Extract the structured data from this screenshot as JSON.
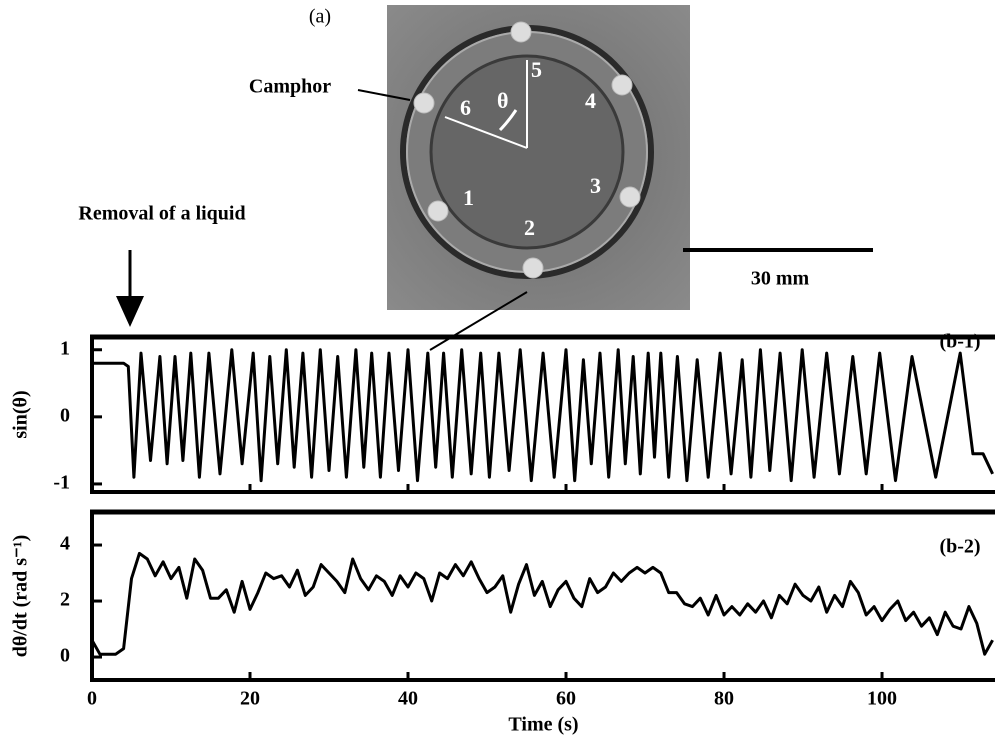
{
  "panel_a": {
    "label": "(a)",
    "camphor_label": "Camphor",
    "theta": "θ",
    "numbers": [
      "1",
      "2",
      "3",
      "4",
      "5",
      "6"
    ],
    "scale_bar": "30 mm"
  },
  "annotation": "Removal of a liquid",
  "chart_data": [
    {
      "type": "line",
      "panel_label": "(b-1)",
      "y_label": "sin(θ)",
      "color": "#000000",
      "xlim": [
        0,
        114.3
      ],
      "ylim": [
        -1.12,
        1.19
      ],
      "yticks": [
        -1,
        0,
        1
      ],
      "x": [
        0,
        4,
        4.6,
        5.3,
        6.2,
        7.4,
        8.6,
        9.5,
        10.5,
        11.5,
        12.5,
        13.6,
        14.8,
        16.2,
        17.7,
        19.0,
        20.4,
        21.4,
        22.5,
        23.5,
        24.6,
        25.6,
        26.7,
        27.8,
        28.9,
        30.0,
        31.1,
        32.2,
        33.4,
        34.4,
        35.4,
        36.5,
        37.6,
        38.8,
        40.0,
        41.2,
        42.5,
        43.5,
        44.5,
        45.6,
        46.8,
        48.0,
        49.2,
        50.3,
        51.5,
        52.8,
        54.2,
        55.6,
        57.1,
        58.5,
        60.0,
        61.1,
        62.2,
        63.2,
        64.3,
        65.4,
        66.6,
        67.5,
        68.5,
        69.4,
        70.4,
        71.2,
        72.0,
        73.0,
        74.1,
        75.3,
        76.6,
        78.0,
        79.5,
        80.9,
        82.3,
        83.4,
        84.6,
        85.8,
        87.1,
        88.5,
        89.9,
        91.4,
        93.0,
        94.6,
        96.3,
        98.0,
        99.7,
        101.7,
        103.8,
        106.8,
        109.9,
        111.5,
        112.8,
        114.0
      ],
      "values": [
        0.8,
        0.8,
        0.75,
        -0.9,
        0.95,
        -0.65,
        0.9,
        -0.7,
        0.9,
        -0.65,
        0.95,
        -0.9,
        0.95,
        -0.85,
        1.0,
        -0.7,
        0.95,
        -0.95,
        0.9,
        -0.7,
        1.0,
        -0.75,
        0.95,
        -0.9,
        1.0,
        -0.8,
        0.9,
        -0.9,
        1.0,
        -0.75,
        0.95,
        -0.9,
        0.95,
        -0.8,
        1.0,
        -0.95,
        0.95,
        -0.75,
        0.95,
        -0.9,
        1.0,
        -0.85,
        0.95,
        -0.9,
        0.95,
        -0.8,
        1.0,
        -0.95,
        0.95,
        -0.9,
        1.0,
        -0.95,
        0.85,
        -0.7,
        0.95,
        -0.9,
        1.0,
        -0.7,
        0.9,
        -0.85,
        0.95,
        -0.6,
        0.95,
        -0.9,
        0.9,
        -0.95,
        0.85,
        -0.9,
        0.95,
        -0.85,
        0.85,
        -0.9,
        1.0,
        -0.8,
        0.95,
        -0.95,
        1.0,
        -0.9,
        0.95,
        -0.85,
        0.9,
        -0.85,
        0.95,
        -0.95,
        0.9,
        -0.9,
        0.95,
        -0.55,
        -0.55,
        -0.85
      ]
    },
    {
      "type": "line",
      "panel_label": "(b-2)",
      "y_label": "dθ/dt (rad s⁻¹)",
      "x_label": "Time (s)",
      "color": "#000000",
      "xlim": [
        0,
        114.3
      ],
      "ylim": [
        -0.82,
        5.18
      ],
      "yticks": [
        0,
        2,
        4
      ],
      "xticks": [
        0,
        20,
        40,
        60,
        80,
        100
      ],
      "x": [
        0,
        1,
        2,
        3,
        4,
        5,
        6,
        7,
        8,
        9,
        10,
        11,
        12,
        13,
        14,
        15,
        16,
        17,
        18,
        19,
        20,
        21,
        22,
        23,
        24,
        25,
        26,
        27,
        28,
        29,
        30,
        31,
        32,
        33,
        34,
        35,
        36,
        37,
        38,
        39,
        40,
        41,
        42,
        43,
        44,
        45,
        46,
        47,
        48,
        49,
        50,
        51,
        52,
        53,
        54,
        55,
        56,
        57,
        58,
        59,
        60,
        61,
        62,
        63,
        64,
        65,
        66,
        67,
        68,
        69,
        70,
        71,
        72,
        73,
        74,
        75,
        76,
        77,
        78,
        79,
        80,
        81,
        82,
        83,
        84,
        85,
        86,
        87,
        88,
        89,
        90,
        91,
        92,
        93,
        94,
        95,
        96,
        97,
        98,
        99,
        100,
        101,
        102,
        103,
        104,
        105,
        106,
        107,
        108,
        109,
        110,
        111,
        112,
        113,
        114
      ],
      "values": [
        0.6,
        0.1,
        0.1,
        0.1,
        0.3,
        2.8,
        3.7,
        3.5,
        2.9,
        3.4,
        2.8,
        3.2,
        2.1,
        3.5,
        3.1,
        2.1,
        2.1,
        2.4,
        1.6,
        2.7,
        1.7,
        2.3,
        3.0,
        2.8,
        2.9,
        2.5,
        3.1,
        2.2,
        2.5,
        3.3,
        3.0,
        2.7,
        2.3,
        3.5,
        2.8,
        2.4,
        2.9,
        2.7,
        2.2,
        2.9,
        2.5,
        3.0,
        2.8,
        2.0,
        3.0,
        2.8,
        3.3,
        2.9,
        3.4,
        2.8,
        2.3,
        2.5,
        2.9,
        1.6,
        2.6,
        3.3,
        2.2,
        2.7,
        1.8,
        2.4,
        2.7,
        2.1,
        1.8,
        2.8,
        2.3,
        2.5,
        3.0,
        2.7,
        3.0,
        3.2,
        3.0,
        3.2,
        3.0,
        2.3,
        2.3,
        1.9,
        1.8,
        2.1,
        1.5,
        2.2,
        1.5,
        1.8,
        1.5,
        1.9,
        1.6,
        2.0,
        1.4,
        2.2,
        1.9,
        2.6,
        2.2,
        2.0,
        2.5,
        1.6,
        2.2,
        1.8,
        2.7,
        2.3,
        1.5,
        1.8,
        1.3,
        1.7,
        2.0,
        1.3,
        1.6,
        1.1,
        1.4,
        0.8,
        1.6,
        1.1,
        1.0,
        1.8,
        1.2,
        0.1,
        0.6
      ]
    }
  ]
}
